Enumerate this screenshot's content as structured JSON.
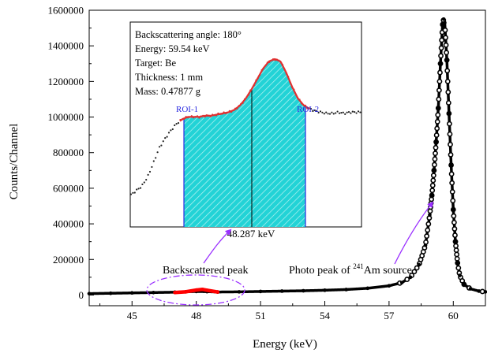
{
  "chart_data": {
    "type": "scatter",
    "xlabel": "Energy (keV)",
    "ylabel": "Counts/Channel",
    "xlim": [
      43,
      61.5
    ],
    "ylim": [
      -60000,
      1600000
    ],
    "x_ticks": [
      45,
      48,
      51,
      54,
      57,
      60
    ],
    "y_ticks": [
      0,
      200000,
      400000,
      600000,
      800000,
      1000000,
      1200000,
      1400000,
      1600000
    ],
    "main_series": {
      "name": "",
      "x": [
        43.0,
        44.0,
        45.0,
        46.0,
        47.0,
        47.5,
        48.0,
        48.5,
        49.0,
        50.0,
        51.0,
        52.0,
        53.0,
        54.0,
        55.0,
        56.0,
        57.0,
        57.6,
        58.0,
        58.4,
        58.7,
        58.9,
        59.0,
        59.1,
        59.2,
        59.3,
        59.4,
        59.5,
        59.55,
        59.6,
        59.7,
        59.8,
        59.9,
        60.0,
        60.1,
        60.2,
        60.3,
        60.5,
        60.8,
        61.2,
        61.5
      ],
      "y": [
        8000,
        10000,
        12000,
        14000,
        16000,
        18000,
        20000,
        19000,
        17000,
        18000,
        20000,
        22000,
        24000,
        27000,
        31000,
        38000,
        52000,
        70000,
        100000,
        170000,
        280000,
        450000,
        560000,
        700000,
        860000,
        1050000,
        1300000,
        1520000,
        1550000,
        1530000,
        1320000,
        1020000,
        730000,
        480000,
        300000,
        180000,
        110000,
        60000,
        35000,
        22000,
        18000
      ]
    },
    "backscatter_highlight": {
      "color": "#ff0000",
      "x": [
        47.0,
        47.5,
        48.0,
        48.287,
        48.5,
        49.0
      ],
      "y": [
        14000,
        18000,
        28000,
        32000,
        27000,
        17000
      ]
    },
    "inset": {
      "info_lines": [
        "Backscattering angle: 180°",
        "Energy: 59.54 keV",
        "Target: Be",
        "Thickness: 1 mm",
        "Mass: 0.47877 g"
      ],
      "peak_label": "48.287 keV",
      "roi_left_label": "ROI-1",
      "roi_right_label": "ROI-2",
      "fill_color": "#22d3d6",
      "data_color": "#222222",
      "fit_color": "#e03030",
      "curve_profile": [
        0.14,
        0.18,
        0.22,
        0.3,
        0.42,
        0.55,
        0.63,
        0.7,
        0.76,
        0.8,
        0.82,
        0.82,
        0.82,
        0.83,
        0.83,
        0.84,
        0.85,
        0.86,
        0.88,
        0.92,
        0.98,
        1.06,
        1.15,
        1.24,
        1.3,
        1.32,
        1.3,
        1.2,
        1.08,
        0.98,
        0.92,
        0.89,
        0.87,
        0.86,
        0.85,
        0.85,
        0.86,
        0.85,
        0.86,
        0.86,
        0.86
      ]
    },
    "annotations": [
      {
        "id": "backscattered",
        "text": "Backscattered peak"
      },
      {
        "id": "photopeak",
        "text_prefix": "Photo peak of ",
        "superscript": "241",
        "text_suffix": "Am source"
      }
    ],
    "annotation_color": "#9a30ff"
  }
}
